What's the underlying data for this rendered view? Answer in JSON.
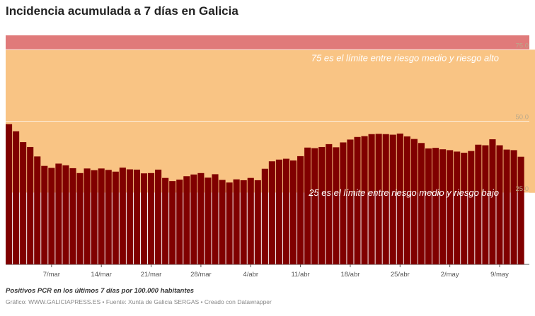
{
  "header": {
    "title": "Incidencia acumulada a 7 días en Galicia"
  },
  "footer": {
    "note": "Positivos PCR en los últimos 7 días por 100.000 habitantes",
    "source": "Gráfico: WWW.GALICIAPRESS.ES • Fuente: Xunta de Galicia SERGAS • Creado con Datawrapper"
  },
  "colors": {
    "bar": "#800000",
    "band_high": "#e07a7a",
    "band_medium": "#f9c484",
    "band_low": "#f8f09a"
  },
  "chart_data": {
    "type": "bar",
    "title": "Incidencia acumulada a 7 días en Galicia",
    "ylabel": "",
    "xlabel": "",
    "ylim": [
      0,
      80
    ],
    "grid": true,
    "y_ticks": [
      "25.0",
      "50.0",
      "75.0"
    ],
    "x_ticks": [
      {
        "label": "7/mar",
        "index": 6
      },
      {
        "label": "14/mar",
        "index": 13
      },
      {
        "label": "21/mar",
        "index": 20
      },
      {
        "label": "28/mar",
        "index": 27
      },
      {
        "label": "4/abr",
        "index": 34
      },
      {
        "label": "11/abr",
        "index": 41
      },
      {
        "label": "18/abr",
        "index": 48
      },
      {
        "label": "25/abr",
        "index": 55
      },
      {
        "label": "2/may",
        "index": 62
      },
      {
        "label": "9/may",
        "index": 69
      }
    ],
    "bands": [
      {
        "from": 75,
        "to": 80,
        "color": "#e07a7a"
      },
      {
        "from": 25,
        "to": 75,
        "color": "#f9c484",
        "until_index": 76
      },
      {
        "from": 0,
        "to": 25,
        "color": "#f8f09a",
        "from_index": 76
      }
    ],
    "annotations": [
      {
        "text": "75 es el límite entre riesgo medio y riesgo alto",
        "y": 75
      },
      {
        "text": "25 es el límite entre riesgo medio y riesgo bajo",
        "y": 25
      }
    ],
    "values": [
      49.0,
      46.5,
      42.7,
      41.0,
      37.7,
      34.4,
      33.7,
      35.2,
      34.6,
      33.6,
      31.9,
      33.5,
      32.9,
      33.5,
      33.0,
      32.4,
      33.8,
      33.2,
      33.1,
      31.8,
      31.9,
      33.1,
      30.2,
      29.1,
      29.6,
      30.8,
      31.4,
      31.9,
      30.3,
      31.5,
      29.5,
      28.6,
      29.7,
      29.4,
      30.2,
      29.4,
      33.4,
      36.0,
      36.6,
      36.9,
      36.3,
      37.8,
      40.8,
      40.6,
      41.0,
      42.0,
      40.9,
      42.6,
      43.6,
      44.5,
      44.8,
      45.5,
      45.6,
      45.5,
      45.3,
      45.7,
      44.7,
      43.8,
      42.4,
      40.5,
      40.7,
      40.2,
      39.9,
      39.4,
      39.0,
      39.6,
      41.8,
      41.6,
      43.7,
      41.6,
      40.1,
      39.9,
      37.6
    ]
  }
}
